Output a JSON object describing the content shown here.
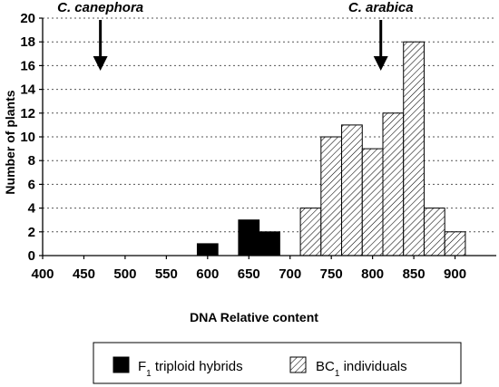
{
  "chart_data": {
    "type": "bar",
    "title": "",
    "xlabel": "DNA Relative content",
    "ylabel": "Number of plants",
    "xlim": [
      400,
      950
    ],
    "ylim": [
      0,
      20
    ],
    "x_ticks": [
      400,
      450,
      500,
      550,
      600,
      650,
      700,
      750,
      800,
      850,
      900
    ],
    "y_ticks": [
      0,
      2,
      4,
      6,
      8,
      10,
      12,
      14,
      16,
      18,
      20
    ],
    "grid": "horizontal dotted",
    "bin_width": 25,
    "series": [
      {
        "name": "F1 triploid hybrids",
        "legend_main": "F",
        "legend_sub": "1",
        "legend_rest": " triploid hybrids",
        "fill": "solid-black",
        "bins": [
          {
            "x": 600,
            "value": 1
          },
          {
            "x": 650,
            "value": 3
          },
          {
            "x": 675,
            "value": 2
          }
        ]
      },
      {
        "name": "BC1 individuals",
        "legend_main": "BC",
        "legend_sub": "1",
        "legend_rest": " individuals",
        "fill": "hatched",
        "bins": [
          {
            "x": 725,
            "value": 4
          },
          {
            "x": 750,
            "value": 10
          },
          {
            "x": 775,
            "value": 11
          },
          {
            "x": 800,
            "value": 9
          },
          {
            "x": 825,
            "value": 12
          },
          {
            "x": 850,
            "value": 18
          },
          {
            "x": 875,
            "value": 4
          },
          {
            "x": 900,
            "value": 2
          }
        ]
      }
    ],
    "annotations": [
      {
        "text": "C. canephora",
        "x": 470
      },
      {
        "text": "C. arabica",
        "x": 810
      }
    ],
    "legend_position": "bottom"
  }
}
